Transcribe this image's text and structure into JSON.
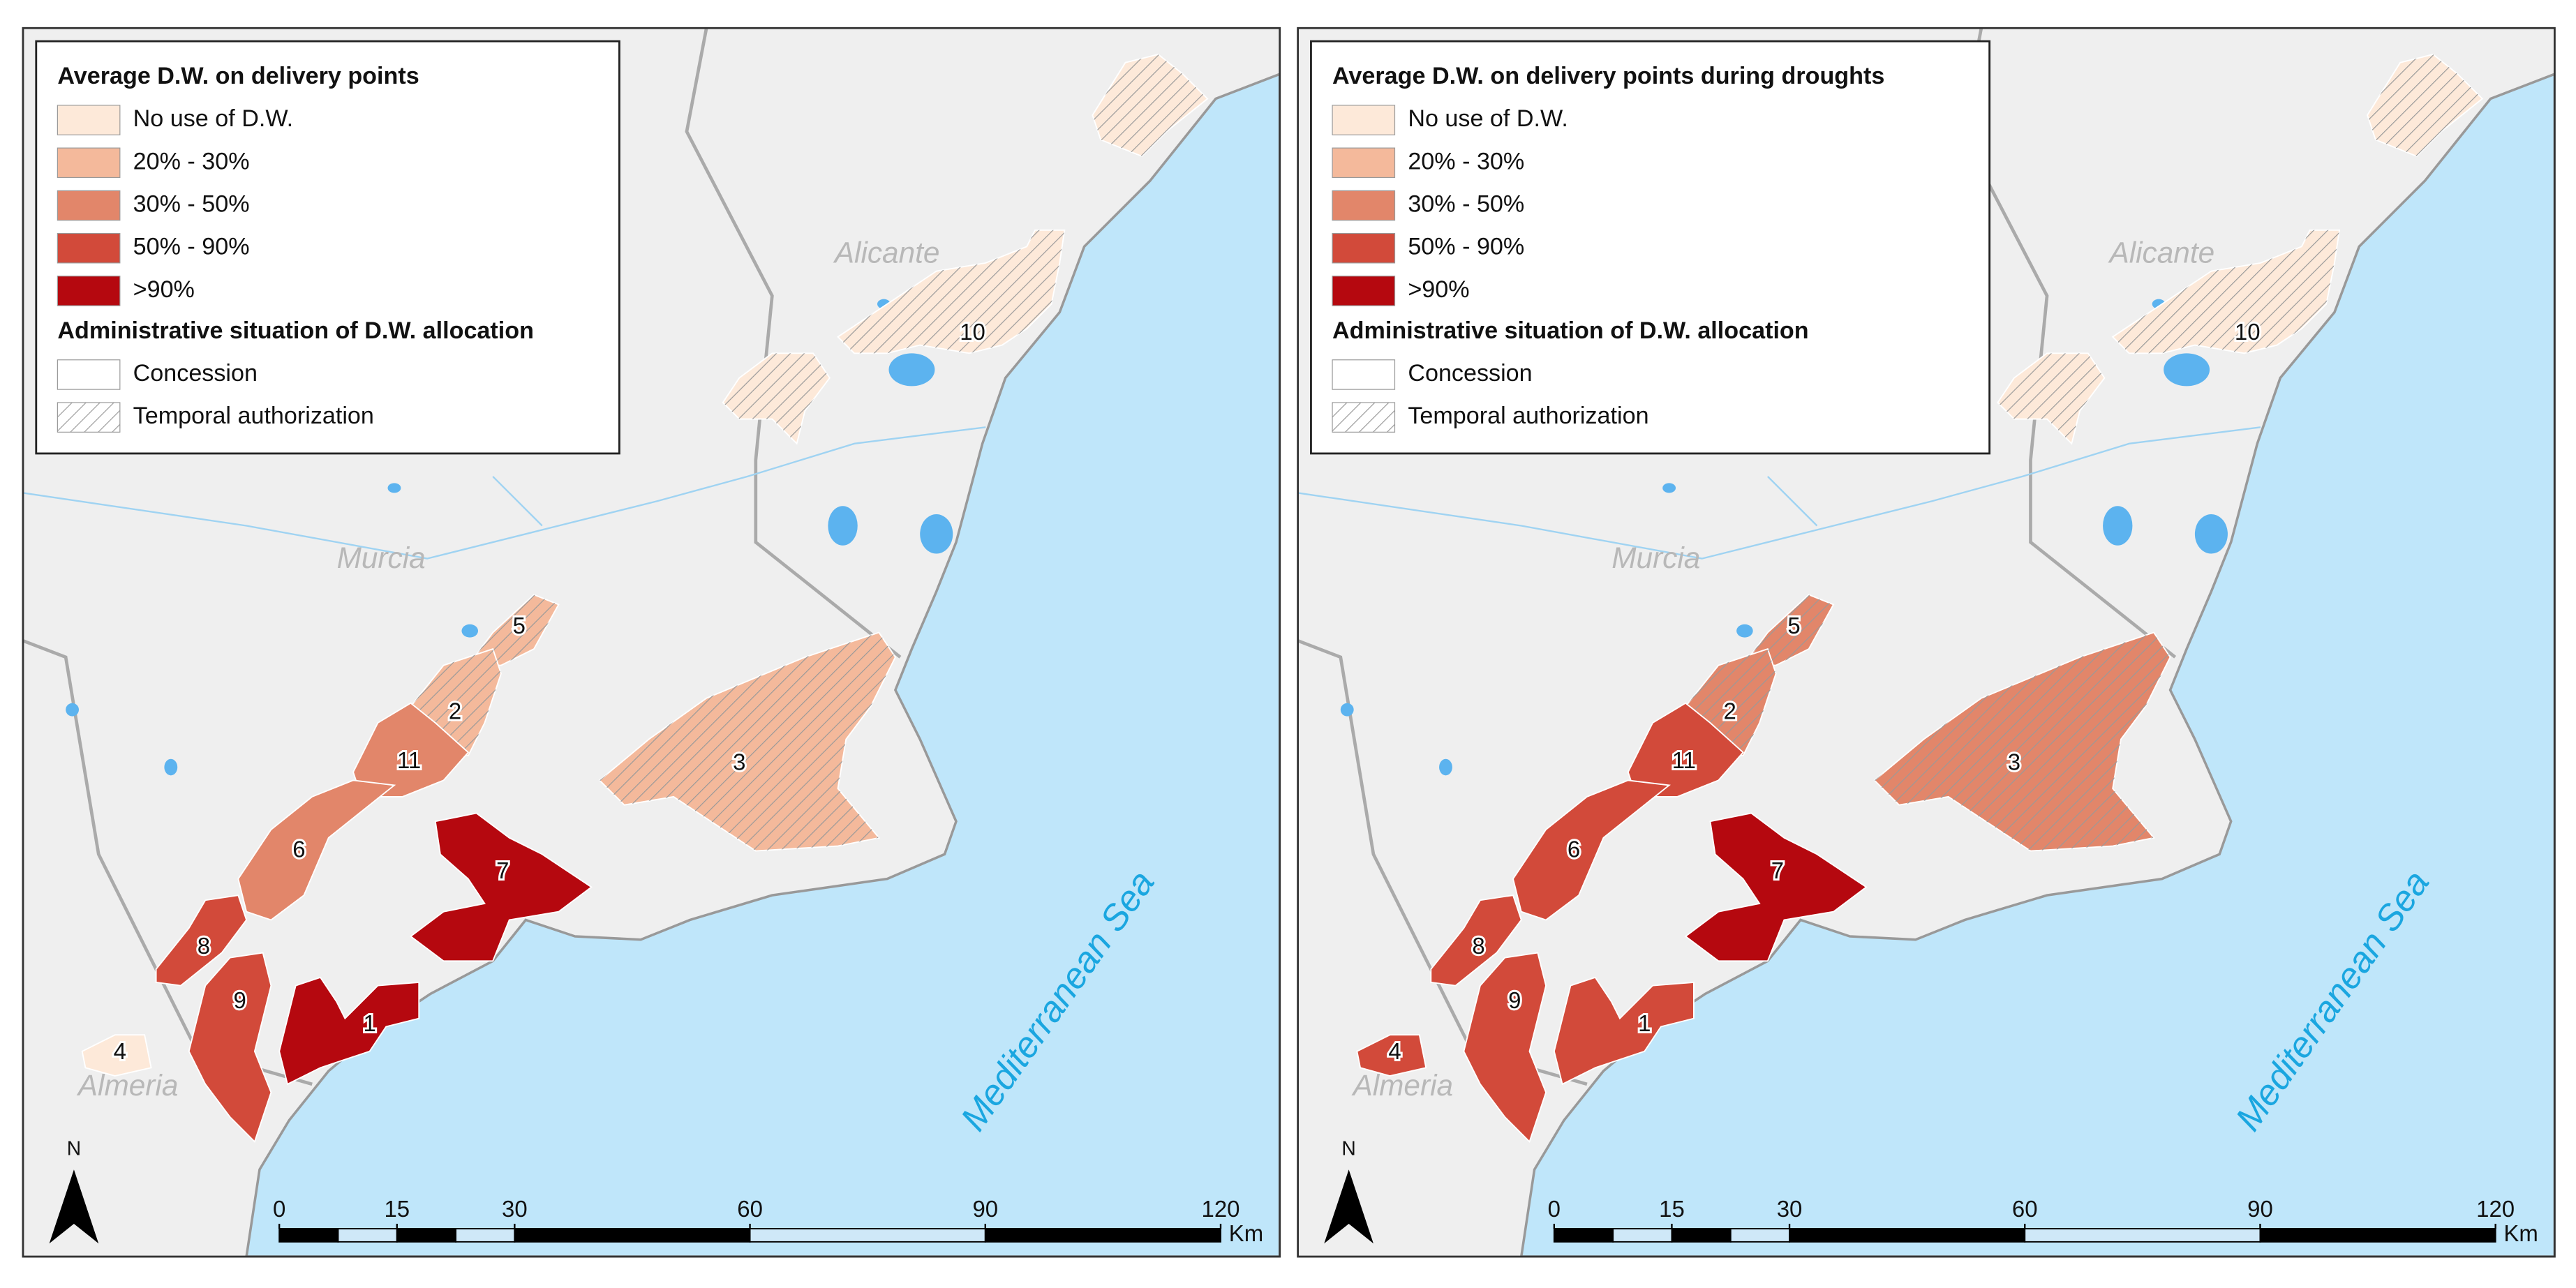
{
  "panels": [
    {
      "legend_title": "Average D.W. on delivery points",
      "legend_items": [
        {
          "label": "No use of D.W.",
          "color": "#fde9d9"
        },
        {
          "label": "20% - 30%",
          "color": "#f4b99b"
        },
        {
          "label": "30% - 50%",
          "color": "#e2866a"
        },
        {
          "label": "50% - 90%",
          "color": "#d24a3a"
        },
        {
          "label": ">90%",
          "color": "#b5080f"
        }
      ],
      "admin_title": "Administrative situation of D.W. allocation",
      "admin_items": [
        "Concession",
        "Temporal authorization"
      ],
      "places": [
        "Alicante",
        "Murcia",
        "Almeria",
        "Mediterranean Sea"
      ],
      "zones": [
        {
          "label": "10",
          "class": 0,
          "admin": 1
        },
        {
          "label": null,
          "class": 0,
          "admin": 1
        },
        {
          "label": null,
          "class": 0,
          "admin": 1
        },
        {
          "label": "5",
          "class": 1,
          "admin": 1
        },
        {
          "label": "2",
          "class": 1,
          "admin": 1
        },
        {
          "label": "11",
          "class": 2,
          "admin": 0
        },
        {
          "label": "6",
          "class": 2,
          "admin": 0
        },
        {
          "label": "8",
          "class": 3,
          "admin": 0
        },
        {
          "label": "9",
          "class": 3,
          "admin": 0
        },
        {
          "label": "1",
          "class": 4,
          "admin": 0
        },
        {
          "label": "7",
          "class": 4,
          "admin": 0
        },
        {
          "label": "3",
          "class": 1,
          "admin": 1
        },
        {
          "label": "4",
          "class": 0,
          "admin": 0
        }
      ],
      "scale_ticks": [
        0,
        15,
        30,
        60,
        90,
        120
      ],
      "scale_unit": "Km",
      "north": "N"
    },
    {
      "legend_title": "Average D.W. on delivery points during droughts",
      "legend_items": [
        {
          "label": "No use of D.W.",
          "color": "#fde9d9"
        },
        {
          "label": "20% - 30%",
          "color": "#f4b99b"
        },
        {
          "label": "30% - 50%",
          "color": "#e2866a"
        },
        {
          "label": "50% - 90%",
          "color": "#d24a3a"
        },
        {
          "label": ">90%",
          "color": "#b5080f"
        }
      ],
      "admin_title": "Administrative situation of D.W. allocation",
      "admin_items": [
        "Concession",
        "Temporal authorization"
      ],
      "places": [
        "Alicante",
        "Murcia",
        "Almeria",
        "Mediterranean Sea"
      ],
      "zones": [
        {
          "label": "10",
          "class": 0,
          "admin": 1
        },
        {
          "label": null,
          "class": 0,
          "admin": 1
        },
        {
          "label": null,
          "class": 0,
          "admin": 1
        },
        {
          "label": "5",
          "class": 2,
          "admin": 1
        },
        {
          "label": "2",
          "class": 2,
          "admin": 1
        },
        {
          "label": "11",
          "class": 3,
          "admin": 0
        },
        {
          "label": "6",
          "class": 3,
          "admin": 0
        },
        {
          "label": "8",
          "class": 3,
          "admin": 0
        },
        {
          "label": "9",
          "class": 3,
          "admin": 0
        },
        {
          "label": "1",
          "class": 3,
          "admin": 0
        },
        {
          "label": "7",
          "class": 4,
          "admin": 0
        },
        {
          "label": "3",
          "class": 2,
          "admin": 1
        },
        {
          "label": "4",
          "class": 3,
          "admin": 0
        }
      ],
      "scale_ticks": [
        0,
        15,
        30,
        60,
        90,
        120
      ],
      "scale_unit": "Km",
      "north": "N"
    }
  ]
}
